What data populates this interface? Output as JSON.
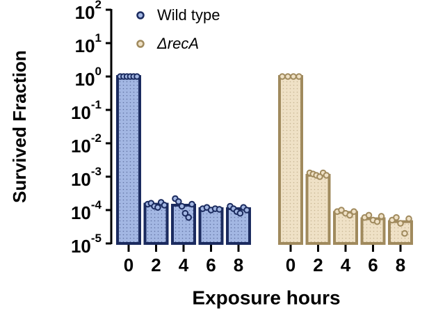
{
  "chart_data": {
    "type": "bar",
    "log_scale": true,
    "y_label": "Survived Fraction",
    "x_label": "Exposure hours",
    "categories": [
      "0",
      "2",
      "4",
      "6",
      "8"
    ],
    "ylim": [
      1e-05,
      100
    ],
    "yticks": [
      {
        "value": 100,
        "label": "10",
        "exp": "2"
      },
      {
        "value": 10,
        "label": "10",
        "exp": "1"
      },
      {
        "value": 1,
        "label": "10",
        "exp": "0"
      },
      {
        "value": 0.1,
        "label": "10",
        "exp": "-1"
      },
      {
        "value": 0.01,
        "label": "10",
        "exp": "-2"
      },
      {
        "value": 0.001,
        "label": "10",
        "exp": "-3"
      },
      {
        "value": 0.0001,
        "label": "10",
        "exp": "-4"
      },
      {
        "value": 1e-05,
        "label": "10",
        "exp": "-5"
      }
    ],
    "series": [
      {
        "name": "Wild type",
        "color": "#a3b7e3",
        "edge": "#1b2b5f",
        "values": [
          1,
          0.00015,
          0.00014,
          0.00011,
          0.00011
        ],
        "points": [
          [
            1,
            1,
            1,
            1,
            1,
            1
          ],
          [
            0.00015,
            0.00016,
            0.00013,
            0.00012,
            0.00017,
            0.00014
          ],
          [
            0.00022,
            0.00018,
            0.00013,
            8e-05,
            6e-05,
            0.00015
          ],
          [
            0.00011,
            0.00012,
            0.0001,
            0.00011,
            0.000105
          ],
          [
            0.00013,
            0.00011,
            9e-05,
            8e-05,
            0.00012,
            0.0001
          ]
        ]
      },
      {
        "name": "ΔrecA",
        "color": "#efe1c6",
        "edge": "#a08a5d",
        "values": [
          1,
          0.0011,
          8.5e-05,
          5.5e-05,
          4.5e-05
        ],
        "points": [
          [
            1,
            1,
            1,
            1
          ],
          [
            0.0013,
            0.0012,
            0.0011,
            0.001,
            0.0013,
            0.0011
          ],
          [
            9e-05,
            0.0001,
            8e-05,
            7e-05,
            9e-05
          ],
          [
            6e-05,
            7e-05,
            5e-05,
            4.5e-05,
            6.5e-05
          ],
          [
            5e-05,
            6e-05,
            4e-05,
            2e-05,
            5.5e-05
          ]
        ]
      }
    ]
  }
}
